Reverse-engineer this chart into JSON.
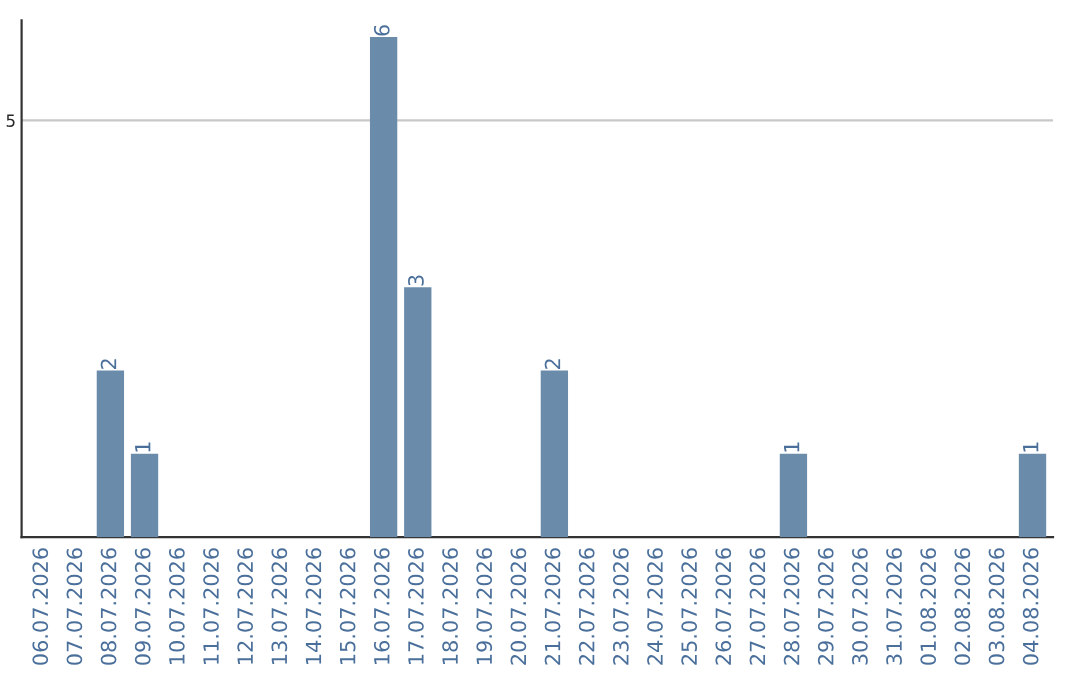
{
  "chart_data": {
    "type": "bar",
    "categories": [
      "06.07.2026",
      "07.07.2026",
      "08.07.2026",
      "09.07.2026",
      "10.07.2026",
      "11.07.2026",
      "12.07.2026",
      "13.07.2026",
      "14.07.2026",
      "15.07.2026",
      "16.07.2026",
      "17.07.2026",
      "18.07.2026",
      "19.07.2026",
      "20.07.2026",
      "21.07.2026",
      "22.07.2026",
      "23.07.2026",
      "24.07.2026",
      "25.07.2026",
      "26.07.2026",
      "27.07.2026",
      "28.07.2026",
      "29.07.2026",
      "30.07.2026",
      "31.07.2026",
      "01.08.2026",
      "02.08.2026",
      "03.08.2026",
      "04.08.2026"
    ],
    "values": [
      0,
      0,
      2,
      1,
      0,
      0,
      0,
      0,
      0,
      0,
      6,
      3,
      0,
      0,
      0,
      2,
      0,
      0,
      0,
      0,
      0,
      0,
      1,
      0,
      0,
      0,
      0,
      0,
      0,
      1
    ],
    "color": "#6b8bab",
    "value_labels": [
      null,
      null,
      "2",
      "1",
      null,
      null,
      null,
      null,
      null,
      null,
      "6",
      "3",
      null,
      null,
      null,
      "2",
      null,
      null,
      null,
      null,
      null,
      null,
      "1",
      null,
      null,
      null,
      null,
      null,
      null,
      "1"
    ],
    "ylim": [
      0,
      6.2
    ],
    "yticks": [
      5
    ],
    "grid": "y"
  }
}
